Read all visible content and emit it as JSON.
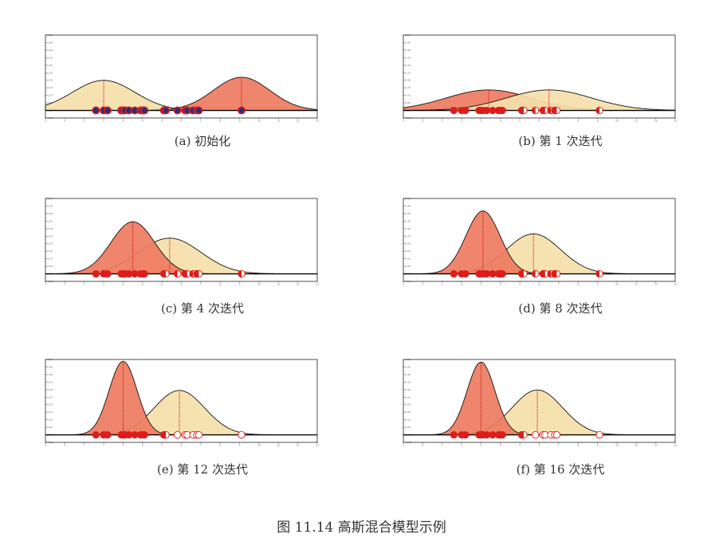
{
  "figure_caption": "图 11.14 高斯混合模型示例",
  "colors": {
    "red_fill": "#ee7b5f",
    "yellow_fill": "#f5e0aa",
    "point_red": "#dd1c1c",
    "point_blue": "#2b2d7a",
    "mean_line": "#cc1111"
  },
  "chart_data": [
    {
      "type": "area",
      "caption": "(a) 初始化",
      "ylim": [
        -0.05,
        0.5
      ],
      "xlim": [
        -1,
        13
      ],
      "points": [
        1.6,
        2.0,
        2.2,
        2.9,
        3.0,
        3.1,
        3.3,
        3.6,
        3.9,
        4.0,
        4.1,
        5.1,
        5.2,
        5.8,
        6.2,
        6.3,
        6.6,
        6.8,
        6.9,
        9.1
      ],
      "resp": [
        0.5,
        0.5,
        0.5,
        0.5,
        0.5,
        0.5,
        0.5,
        0.5,
        0.5,
        0.5,
        0.5,
        0.5,
        0.5,
        0.5,
        0.5,
        0.5,
        0.5,
        0.5,
        0.5,
        0.5
      ],
      "point_mode": "init",
      "components": [
        {
          "mean": 2.0,
          "sd": 1.6,
          "weight": 0.8,
          "color": "#f5e0aa"
        },
        {
          "mean": 9.1,
          "sd": 1.45,
          "weight": 0.8,
          "color": "#ee7b5f"
        }
      ]
    },
    {
      "type": "area",
      "caption": "(b) 第 1 次迭代",
      "ylim": [
        -0.05,
        0.5
      ],
      "xlim": [
        -1,
        13
      ],
      "points": [
        1.6,
        2.0,
        2.2,
        2.9,
        3.0,
        3.1,
        3.3,
        3.6,
        3.9,
        4.0,
        4.1,
        5.1,
        5.2,
        5.8,
        6.2,
        6.3,
        6.6,
        6.8,
        6.9,
        9.1
      ],
      "resp": [
        1,
        1,
        1,
        1,
        1,
        1,
        1,
        1,
        1,
        1,
        1,
        0.5,
        0.5,
        0.5,
        0.5,
        0.5,
        0.5,
        0.5,
        0.5,
        0.5
      ],
      "components": [
        {
          "mean": 3.4,
          "sd": 2.2,
          "weight": 0.75,
          "color": "#ee7b5f"
        },
        {
          "mean": 6.5,
          "sd": 2.2,
          "weight": 0.75,
          "color": "#f5e0aa"
        }
      ]
    },
    {
      "type": "area",
      "caption": "(c) 第 4 次迭代",
      "ylim": [
        -0.05,
        0.5
      ],
      "xlim": [
        -1,
        13
      ],
      "points": [
        1.6,
        2.0,
        2.2,
        2.9,
        3.0,
        3.1,
        3.3,
        3.6,
        3.9,
        4.0,
        4.1,
        5.1,
        5.2,
        5.8,
        6.2,
        6.3,
        6.6,
        6.8,
        6.9,
        9.1
      ],
      "resp": [
        1,
        1,
        1,
        1,
        1,
        1,
        1,
        1,
        1,
        1,
        1,
        0.5,
        0.5,
        0.5,
        0.5,
        0.5,
        0.5,
        0.5,
        0.5,
        0.5
      ],
      "components": [
        {
          "mean": 3.5,
          "sd": 1.12,
          "weight": 0.97,
          "color": "#ee7b5f"
        },
        {
          "mean": 5.4,
          "sd": 1.6,
          "weight": 0.95,
          "color": "#f5e0aa"
        }
      ]
    },
    {
      "type": "area",
      "caption": "(d) 第 8 次迭代",
      "ylim": [
        -0.05,
        0.5
      ],
      "xlim": [
        -1,
        13
      ],
      "points": [
        1.6,
        2.0,
        2.2,
        2.9,
        3.0,
        3.1,
        3.3,
        3.6,
        3.9,
        4.0,
        4.1,
        5.1,
        5.2,
        5.8,
        6.2,
        6.3,
        6.6,
        6.8,
        6.9,
        9.1
      ],
      "resp": [
        1,
        1,
        1,
        1,
        1,
        1,
        1,
        1,
        1,
        1,
        1,
        0.5,
        0.5,
        0.5,
        0.5,
        0.5,
        0.5,
        0.5,
        0.5,
        0.5
      ],
      "components": [
        {
          "mean": 3.1,
          "sd": 0.88,
          "weight": 0.92,
          "color": "#ee7b5f"
        },
        {
          "mean": 5.7,
          "sd": 1.4,
          "weight": 0.93,
          "color": "#f5e0aa"
        }
      ]
    },
    {
      "type": "area",
      "caption": "(e) 第 12 次迭代",
      "ylim": [
        -0.05,
        0.5
      ],
      "xlim": [
        -1,
        13
      ],
      "points": [
        1.6,
        2.0,
        2.2,
        2.9,
        3.0,
        3.1,
        3.3,
        3.6,
        3.9,
        4.0,
        4.1,
        5.1,
        5.2,
        5.8,
        6.2,
        6.3,
        6.6,
        6.8,
        6.9,
        9.1
      ],
      "resp": [
        1,
        1,
        1,
        1,
        1,
        1,
        1,
        1,
        1,
        1,
        1,
        0.5,
        0.5,
        0,
        0,
        0,
        0,
        0,
        0,
        0
      ],
      "components": [
        {
          "mean": 3.0,
          "sd": 0.72,
          "weight": 0.88,
          "color": "#ee7b5f"
        },
        {
          "mean": 5.9,
          "sd": 1.3,
          "weight": 0.96,
          "color": "#f5e0aa"
        }
      ]
    },
    {
      "type": "area",
      "caption": "(f) 第 16 次迭代",
      "ylim": [
        -0.05,
        0.5
      ],
      "xlim": [
        -1,
        13
      ],
      "points": [
        1.6,
        2.0,
        2.2,
        2.9,
        3.0,
        3.1,
        3.3,
        3.6,
        3.9,
        4.0,
        4.1,
        5.1,
        5.2,
        5.8,
        6.2,
        6.3,
        6.6,
        6.8,
        6.9,
        9.1
      ],
      "resp": [
        1,
        1,
        1,
        1,
        1,
        1,
        1,
        1,
        1,
        1,
        1,
        0.5,
        0.5,
        0,
        0,
        0,
        0,
        0,
        0,
        0
      ],
      "components": [
        {
          "mean": 3.0,
          "sd": 0.72,
          "weight": 0.87,
          "color": "#ee7b5f"
        },
        {
          "mean": 5.9,
          "sd": 1.3,
          "weight": 0.97,
          "color": "#f5e0aa"
        }
      ]
    }
  ]
}
